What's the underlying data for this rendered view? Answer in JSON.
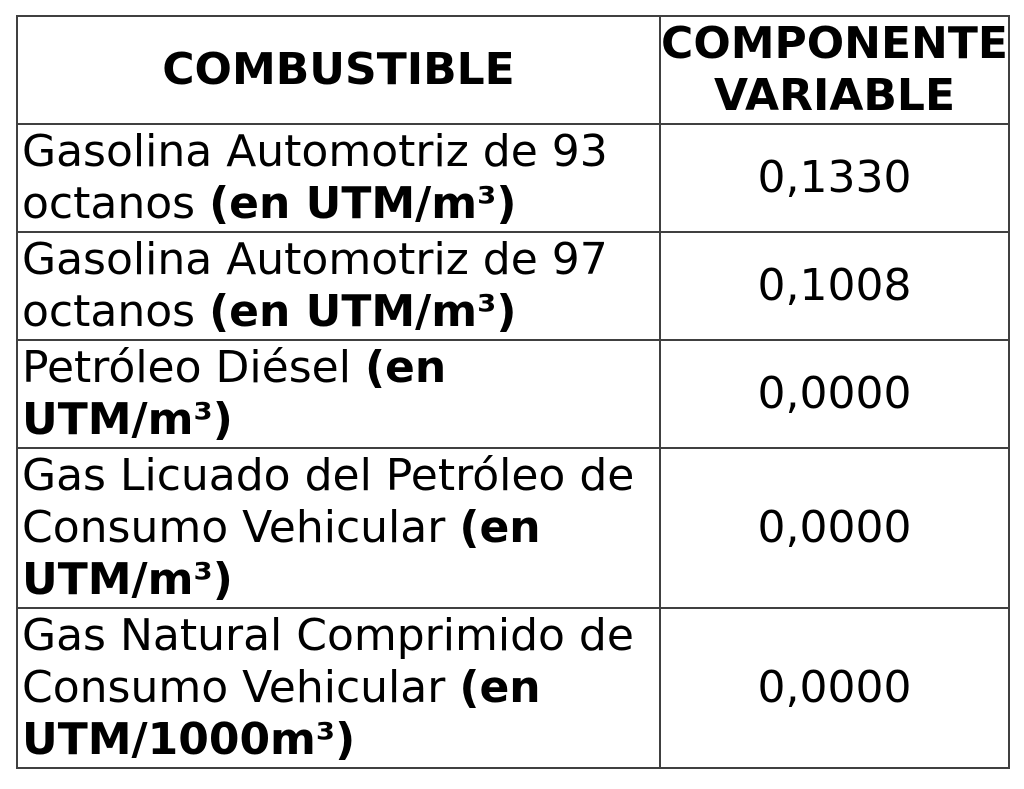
{
  "table": {
    "headers": {
      "fuel": "COMBUSTIBLE",
      "variable_component": "COMPONENTE VARIABLE"
    },
    "rows": [
      {
        "fuel": "Gasolina Automotriz de 93 octanos",
        "unit": "(en UTM/m³)",
        "value": "0,1330"
      },
      {
        "fuel": "Gasolina Automotriz de 97 octanos",
        "unit": "(en UTM/m³)",
        "value": "0,1008"
      },
      {
        "fuel": "Petróleo Diésel",
        "unit": "(en UTM/m³)",
        "value": "0,0000"
      },
      {
        "fuel": "Gas Licuado del Petróleo de Consumo Vehicular",
        "unit": "(en UTM/m³)",
        "value": "0,0000"
      },
      {
        "fuel": "Gas Natural Comprimido de Consumo Vehicular",
        "unit": "(en UTM/1000m³)",
        "value": "0,0000"
      }
    ]
  },
  "colors": {
    "border": "#404040",
    "text": "#000000",
    "background": "#ffffff"
  }
}
